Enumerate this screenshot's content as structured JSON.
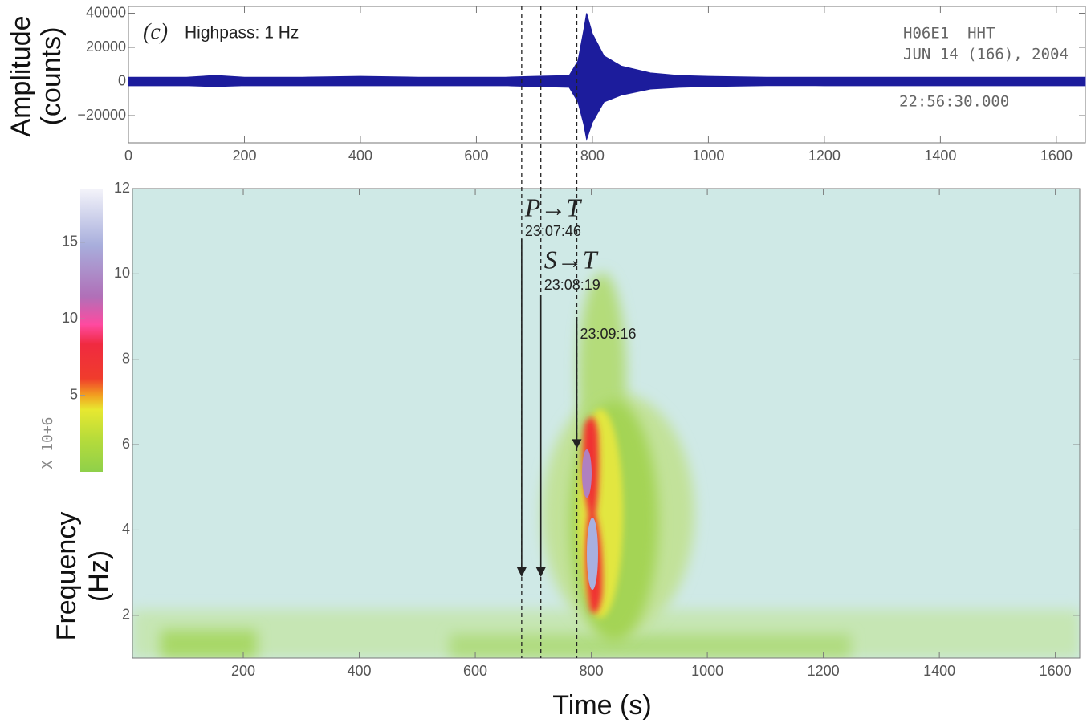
{
  "chart_data": [
    {
      "type": "area",
      "panel_label": "(c)",
      "subtitle": "Highpass: 1 Hz",
      "station": [
        "H06E1  HHT",
        "JUN 14 (166), 2004",
        "22:56:30.000"
      ],
      "ylabel": [
        "Amplitude",
        "(counts)"
      ],
      "color": "#1c1c9c",
      "x": [
        0,
        100,
        150,
        200,
        300,
        400,
        500,
        600,
        650,
        700,
        760,
        775,
        785,
        790,
        800,
        820,
        850,
        900,
        950,
        1000,
        1100,
        1200,
        1300,
        1400,
        1500,
        1600,
        1650
      ],
      "envelope_max": [
        2500,
        2500,
        3500,
        2500,
        2500,
        3000,
        2500,
        2500,
        2500,
        3000,
        3500,
        12000,
        30000,
        40000,
        28000,
        15000,
        9000,
        5000,
        3500,
        3000,
        2500,
        2500,
        2500,
        2500,
        2500,
        2500,
        2500
      ],
      "envelope_min": [
        -2500,
        -2500,
        -3000,
        -2500,
        -2500,
        -2500,
        -2500,
        -2500,
        -2500,
        -3000,
        -3500,
        -12000,
        -25000,
        -34000,
        -24000,
        -12000,
        -8000,
        -4500,
        -3500,
        -3000,
        -2500,
        -2500,
        -2500,
        -2500,
        -2500,
        -2500,
        -2500
      ],
      "xlim": [
        0,
        1650
      ],
      "ylim": [
        -36000,
        44000
      ],
      "xticks": [
        0,
        200,
        400,
        600,
        800,
        1000,
        1200,
        1400,
        1600
      ],
      "yticks": [
        40000,
        20000,
        0,
        {
          "value": -20000,
          "label": "−20000"
        }
      ]
    },
    {
      "type": "spectrogram",
      "ylabel": [
        "Frequency",
        "(Hz)"
      ],
      "xlabel": "Time (s)",
      "xlim": [
        9,
        1642
      ],
      "ylim": [
        1,
        12
      ],
      "xticks": [
        200,
        400,
        600,
        800,
        1000,
        1200,
        1400,
        1600
      ],
      "yticks": [
        2,
        4,
        6,
        8,
        10,
        12
      ],
      "colorbar": {
        "label": "X 10+6",
        "lim": [
          0,
          18.5
        ],
        "ticks": [
          5,
          10,
          15
        ]
      },
      "arrows": [
        {
          "label": "P→T",
          "time_label": "23:07:46",
          "time": 680,
          "freq": 2.9
        },
        {
          "label": "S→T",
          "time_label": "23:08:19",
          "time": 713,
          "freq": 2.9
        },
        {
          "time_label": "23:09:16",
          "time": 775,
          "freq": 5.9
        }
      ]
    }
  ]
}
